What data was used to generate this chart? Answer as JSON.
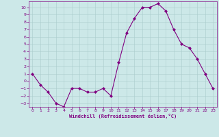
{
  "x": [
    0,
    1,
    2,
    3,
    4,
    5,
    6,
    7,
    8,
    9,
    10,
    11,
    12,
    13,
    14,
    15,
    16,
    17,
    18,
    19,
    20,
    21,
    22,
    23
  ],
  "y": [
    1,
    -0.5,
    -1.5,
    -3,
    -3.5,
    -1,
    -1,
    -1.5,
    -1.5,
    -1,
    -2,
    2.5,
    6.5,
    8.5,
    10,
    10,
    10.5,
    9.5,
    7,
    5,
    4.5,
    3,
    1,
    -1
  ],
  "line_color": "#800080",
  "marker": "D",
  "marker_size": 2,
  "bg_color": "#cce8e8",
  "grid_color": "#aacccc",
  "xlabel": "Windchill (Refroidissement éolien,°C)",
  "xlabel_color": "#800080",
  "tick_color": "#800080",
  "ylim": [
    -3.5,
    10.8
  ],
  "xlim": [
    -0.5,
    23.5
  ],
  "yticks": [
    -3,
    -2,
    -1,
    0,
    1,
    2,
    3,
    4,
    5,
    6,
    7,
    8,
    9,
    10
  ],
  "xticks": [
    0,
    1,
    2,
    3,
    4,
    5,
    6,
    7,
    8,
    9,
    10,
    11,
    12,
    13,
    14,
    15,
    16,
    17,
    18,
    19,
    20,
    21,
    22,
    23
  ]
}
